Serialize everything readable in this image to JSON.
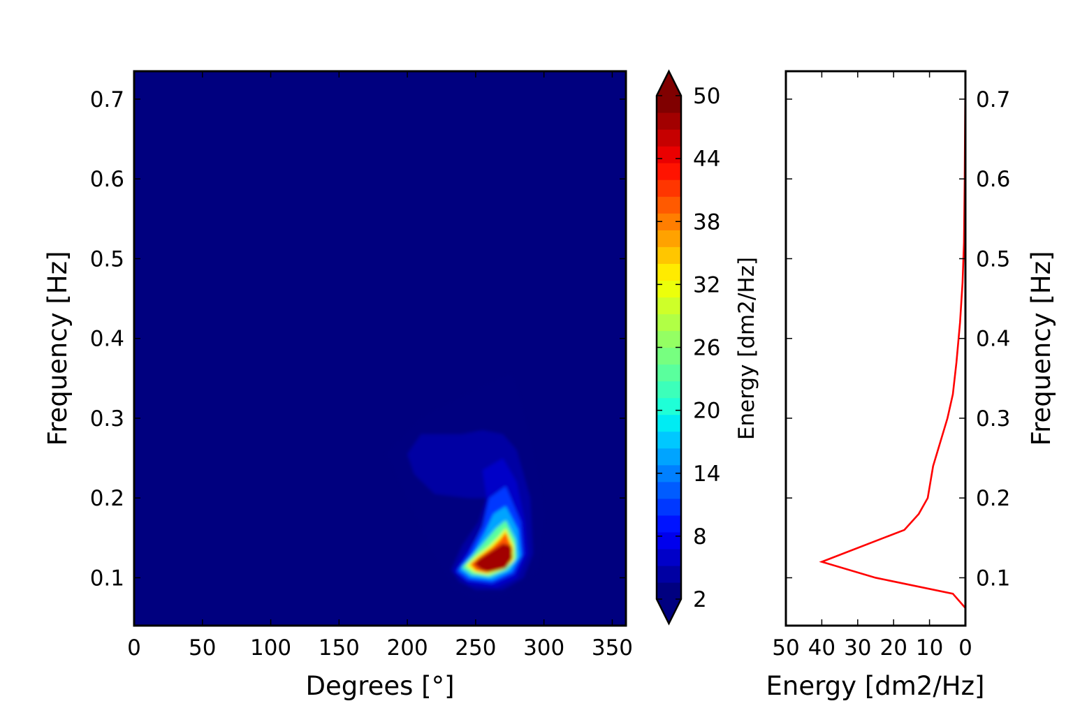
{
  "chart_data": [
    {
      "type": "heatmap",
      "xlabel": "Degrees [°]",
      "ylabel": "Frequency [Hz]",
      "xlim": [
        0,
        360
      ],
      "ylim": [
        0.04,
        0.735
      ],
      "x_ticks": [
        0,
        50,
        100,
        150,
        200,
        250,
        300,
        350
      ],
      "y_ticks": [
        0.1,
        0.2,
        0.3,
        0.4,
        0.5,
        0.6,
        0.7
      ],
      "colormap": "jet",
      "background_color": "#00007f",
      "contour_levels": [
        {
          "level": 2,
          "x": [
            185,
            210,
            250,
            275,
            278,
            290,
            300,
            295,
            280,
            275,
            250,
            235,
            220,
            200,
            190
          ],
          "y": [
            0.255,
            0.3,
            0.335,
            0.355,
            0.35,
            0.27,
            0.18,
            0.11,
            0.09,
            0.08,
            0.075,
            0.085,
            0.13,
            0.2,
            0.24
          ]
        },
        {
          "level": 4,
          "x": [
            200,
            210,
            240,
            255,
            270,
            280,
            290,
            292,
            285,
            270,
            250,
            238,
            232,
            240,
            252,
            258,
            245,
            220,
            205
          ],
          "y": [
            0.255,
            0.28,
            0.28,
            0.285,
            0.28,
            0.26,
            0.2,
            0.13,
            0.1,
            0.085,
            0.085,
            0.095,
            0.11,
            0.14,
            0.17,
            0.2,
            0.2,
            0.205,
            0.23
          ]
        },
        {
          "level": 6,
          "x": [
            255,
            270,
            280,
            286,
            288,
            280,
            265,
            245,
            234,
            242,
            255,
            258
          ],
          "y": [
            0.235,
            0.25,
            0.22,
            0.17,
            0.13,
            0.1,
            0.088,
            0.092,
            0.108,
            0.13,
            0.16,
            0.2
          ]
        },
        {
          "level": 10,
          "x": [
            260,
            272,
            283,
            285,
            278,
            262,
            244,
            236,
            245,
            255
          ],
          "y": [
            0.2,
            0.215,
            0.17,
            0.13,
            0.105,
            0.093,
            0.097,
            0.108,
            0.13,
            0.165
          ]
        },
        {
          "level": 16,
          "x": [
            263,
            272,
            281,
            283,
            276,
            262,
            246,
            238,
            248,
            257
          ],
          "y": [
            0.18,
            0.19,
            0.16,
            0.128,
            0.108,
            0.097,
            0.1,
            0.11,
            0.13,
            0.158
          ]
        },
        {
          "level": 24,
          "x": [
            265,
            272,
            279,
            280,
            273,
            260,
            247,
            240,
            249,
            258
          ],
          "y": [
            0.162,
            0.172,
            0.148,
            0.125,
            0.11,
            0.101,
            0.104,
            0.113,
            0.13,
            0.148
          ]
        },
        {
          "level": 32,
          "x": [
            267,
            272,
            278,
            278,
            271,
            259,
            249,
            243,
            251,
            260
          ],
          "y": [
            0.152,
            0.162,
            0.14,
            0.122,
            0.111,
            0.104,
            0.107,
            0.115,
            0.128,
            0.14
          ]
        },
        {
          "level": 40,
          "x": [
            268,
            272,
            277,
            276,
            270,
            258,
            250,
            246,
            253,
            262
          ],
          "y": [
            0.148,
            0.157,
            0.136,
            0.121,
            0.112,
            0.106,
            0.109,
            0.117,
            0.127,
            0.138
          ]
        },
        {
          "level": 48,
          "x": [
            252,
            262,
            270,
            276,
            277,
            272,
            260,
            254,
            249
          ],
          "y": [
            0.123,
            0.134,
            0.143,
            0.14,
            0.125,
            0.112,
            0.107,
            0.11,
            0.117
          ]
        }
      ]
    },
    {
      "type": "colorbar",
      "label": "Energy [dm2/Hz]",
      "range": [
        2,
        50
      ],
      "ticks": [
        2,
        8,
        14,
        20,
        26,
        32,
        38,
        44,
        50
      ],
      "band_colors": [
        "#000080",
        "#0000a3",
        "#0000c8",
        "#0000ed",
        "#0013ff",
        "#0038ff",
        "#005cff",
        "#0080ff",
        "#00a4ff",
        "#00c8ff",
        "#00ecf3",
        "#1fffd7",
        "#3cffba",
        "#5aff9d",
        "#77ff80",
        "#94ff63",
        "#b1ff45",
        "#ceff29",
        "#ecff0b",
        "#ffeb00",
        "#ffc600",
        "#ffa200",
        "#ff7e00",
        "#ff5a00",
        "#ff3600",
        "#ff1300",
        "#ea0000",
        "#c60000",
        "#a20000",
        "#800000"
      ],
      "extend": "both",
      "under_color": "#000080",
      "over_color": "#800000"
    },
    {
      "type": "line",
      "xlabel": "Energy [dm2/Hz]",
      "ylabel": "Frequency [Hz]",
      "xlim": [
        50,
        0
      ],
      "ylim": [
        0.04,
        0.735
      ],
      "x_ticks": [
        50,
        40,
        30,
        20,
        10,
        0
      ],
      "y_ticks": [
        0.1,
        0.2,
        0.3,
        0.4,
        0.5,
        0.6,
        0.7
      ],
      "x_inverted": true,
      "yaxis_side": "right",
      "series": [
        {
          "color": "#ff0000",
          "energy": [
            0.0,
            3.5,
            25.0,
            40.0,
            17.0,
            13.0,
            10.5,
            9.0,
            5.0,
            3.5,
            2.5,
            1.5,
            0.8,
            0.4,
            0.2,
            0.0
          ],
          "freq": [
            0.062,
            0.08,
            0.1,
            0.12,
            0.16,
            0.18,
            0.2,
            0.24,
            0.3,
            0.33,
            0.37,
            0.42,
            0.47,
            0.52,
            0.6,
            0.735
          ]
        }
      ]
    }
  ]
}
